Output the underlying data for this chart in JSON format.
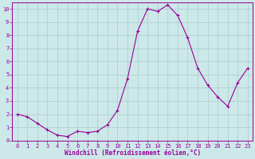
{
  "x": [
    0,
    1,
    2,
    3,
    4,
    5,
    6,
    7,
    8,
    9,
    10,
    11,
    12,
    13,
    14,
    15,
    16,
    17,
    18,
    19,
    20,
    21,
    22,
    23
  ],
  "y": [
    2.0,
    1.8,
    1.3,
    0.8,
    0.4,
    0.3,
    0.7,
    0.6,
    0.7,
    1.2,
    2.3,
    4.7,
    8.3,
    10.0,
    9.8,
    10.3,
    9.5,
    7.8,
    5.5,
    4.2,
    3.3,
    2.6,
    4.4,
    5.5
  ],
  "line_color": "#990099",
  "marker": "+",
  "marker_size": 3.5,
  "bg_color": "#cce8e8",
  "grid_color": "#aacccc",
  "xlabel": "Windchill (Refroidissement éolien,°C)",
  "xlabel_color": "#990099",
  "tick_color": "#990099",
  "spine_color": "#990099",
  "xlim": [
    -0.5,
    23.5
  ],
  "ylim": [
    0,
    10.5
  ],
  "xticks": [
    0,
    1,
    2,
    3,
    4,
    5,
    6,
    7,
    8,
    9,
    10,
    11,
    12,
    13,
    14,
    15,
    16,
    17,
    18,
    19,
    20,
    21,
    22,
    23
  ],
  "yticks": [
    0,
    1,
    2,
    3,
    4,
    5,
    6,
    7,
    8,
    9,
    10
  ],
  "label_fontsize": 5.5,
  "tick_fontsize": 5.0
}
